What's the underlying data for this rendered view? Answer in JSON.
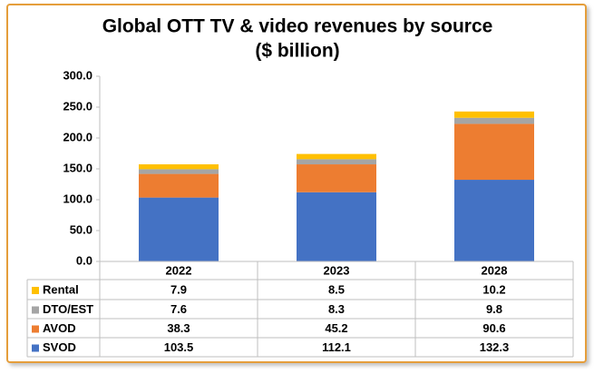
{
  "chart_data": {
    "type": "stacked_bar",
    "title": "Global OTT TV & video revenues by source",
    "subtitle": "($ billion)",
    "categories": [
      "2022",
      "2023",
      "2028"
    ],
    "series": [
      {
        "name": "SVOD",
        "color": "#4472c4",
        "values": [
          103.5,
          112.1,
          132.3
        ]
      },
      {
        "name": "AVOD",
        "color": "#ed7d31",
        "values": [
          38.3,
          45.2,
          90.6
        ]
      },
      {
        "name": "DTO/EST",
        "color": "#a5a5a5",
        "values": [
          7.6,
          8.3,
          9.8
        ]
      },
      {
        "name": "Rental",
        "color": "#ffc000",
        "values": [
          7.9,
          8.5,
          10.2
        ]
      }
    ],
    "ylim": [
      0,
      300
    ],
    "yticks": [
      {
        "value": 0,
        "label": "0.0"
      },
      {
        "value": 50,
        "label": "50.0"
      },
      {
        "value": 100,
        "label": "100.0"
      },
      {
        "value": 150,
        "label": "150.0"
      },
      {
        "value": 200,
        "label": "200.0"
      },
      {
        "value": 250,
        "label": "250.0"
      },
      {
        "value": 300,
        "label": "300.0"
      }
    ],
    "grid": false,
    "data_table": true
  }
}
